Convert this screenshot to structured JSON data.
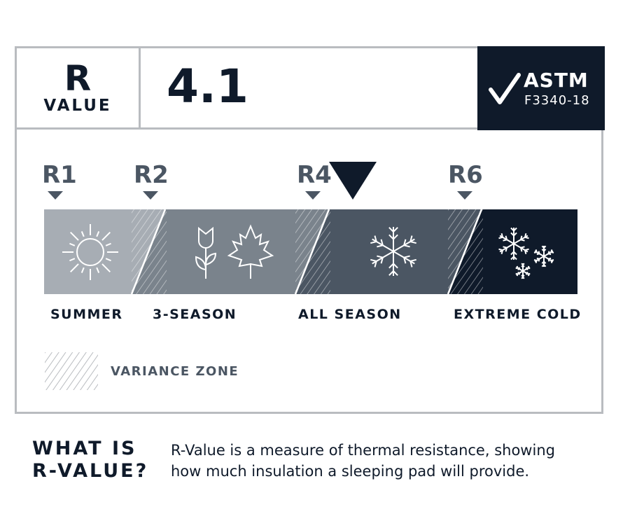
{
  "header": {
    "r_letter": "R",
    "r_label": "VALUE",
    "r_value": "4.1"
  },
  "certification": {
    "icon": "checkmark-icon",
    "name": "ASTM",
    "standard": "F3340-18"
  },
  "scale": {
    "markers": [
      "R1",
      "R2",
      "R4",
      "R6"
    ],
    "current_value": 4.1,
    "segments": [
      {
        "label": "SUMMER",
        "color": "#a7adb4",
        "icon": "sun-icon"
      },
      {
        "label": "3-SEASON",
        "color": "#7a838c",
        "icon": "flower-leaf-icon"
      },
      {
        "label": "ALL SEASON",
        "color": "#4b5663",
        "icon": "snowflake-icon"
      },
      {
        "label": "EXTREME COLD",
        "color": "#0f1a2a",
        "icon": "snowflakes-icon"
      }
    ]
  },
  "legend": {
    "variance_label": "VARIANCE ZONE"
  },
  "footer": {
    "heading_line1": "WHAT IS",
    "heading_line2": "R-VALUE?",
    "description_line1": "R-Value is a measure of thermal resistance, showing",
    "description_line2": "how much insulation a sleeping pad will provide."
  }
}
